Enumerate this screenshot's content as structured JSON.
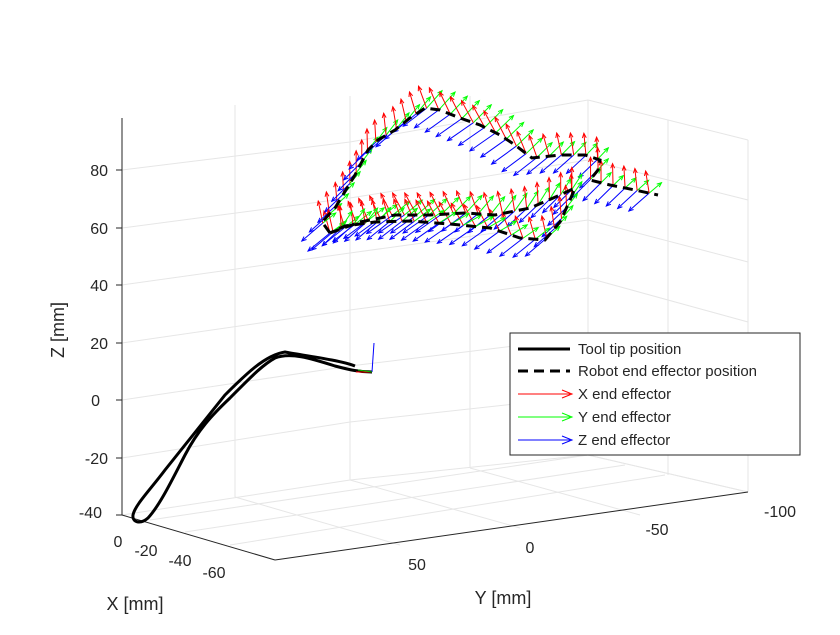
{
  "chart_data": {
    "type": "line",
    "title": "",
    "xlabel": "X [mm]",
    "ylabel": "Y [mm]",
    "zlabel": "Z [mm]",
    "x_ticks": [
      "0",
      "-20",
      "-40",
      "-60"
    ],
    "y_ticks": [
      "50",
      "0",
      "-50",
      "-100"
    ],
    "z_ticks": [
      "80",
      "60",
      "40",
      "20",
      "0",
      "-20",
      "-40"
    ],
    "zlim": [
      -45,
      100
    ],
    "legend": {
      "position": "right",
      "entries": [
        {
          "label": "Tool tip position",
          "style": "solid",
          "color": "#000000"
        },
        {
          "label": "Robot end effector position",
          "style": "dashed",
          "color": "#000000"
        },
        {
          "label": "X end effector",
          "style": "arrow",
          "color": "#ff0000"
        },
        {
          "label": "Y end effector",
          "style": "arrow",
          "color": "#00ff00"
        },
        {
          "label": "Z end effector",
          "style": "arrow",
          "color": "#0000ff"
        }
      ]
    },
    "series": [
      {
        "name": "Tool tip position",
        "description": "closed figure-eight style loop near origin, Z range approx -43 to 16 mm"
      },
      {
        "name": "Robot end effector position",
        "description": "dashed loop path at Z approx 60 to 100 mm with orientation triads"
      }
    ]
  }
}
